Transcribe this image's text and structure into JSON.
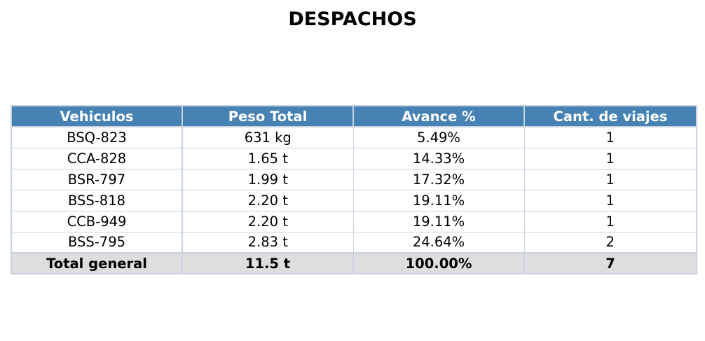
{
  "title": "DESPACHOS",
  "colors": {
    "header_bg": "#4682b4",
    "header_text": "#ffffff",
    "grid": "#c8d3df",
    "total_bg": "#dedede"
  },
  "chart_data": {
    "type": "table",
    "title": "DESPACHOS",
    "columns": [
      "Vehiculos",
      "Peso Total",
      "Avance %",
      "Cant. de viajes"
    ],
    "rows": [
      [
        "BSQ-823",
        "631 kg",
        "5.49%",
        "1"
      ],
      [
        "CCA-828",
        "1.65 t",
        "14.33%",
        "1"
      ],
      [
        "BSR-797",
        "1.99 t",
        "17.32%",
        "1"
      ],
      [
        "BSS-818",
        "2.20 t",
        "19.11%",
        "1"
      ],
      [
        "CCB-949",
        "2.20 t",
        "19.11%",
        "1"
      ],
      [
        "BSS-795",
        "2.83 t",
        "24.64%",
        "2"
      ]
    ],
    "total": [
      "Total general",
      "11.5 t",
      "100.00%",
      "7"
    ]
  }
}
